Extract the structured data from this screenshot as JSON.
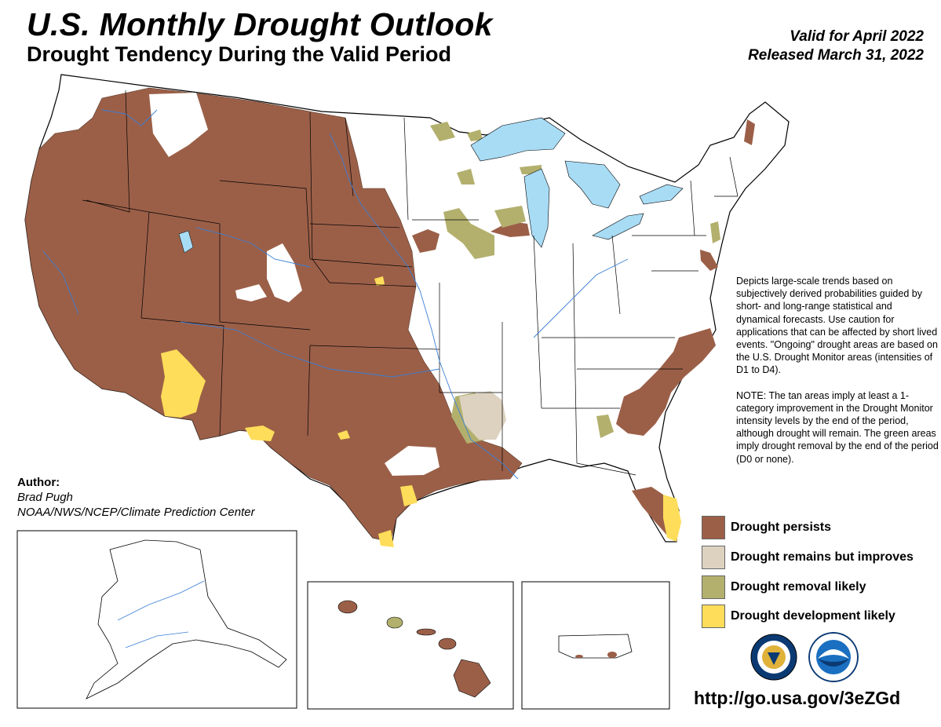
{
  "header": {
    "title": "U.S. Monthly Drought Outlook",
    "subtitle": "Drought Tendency During the Valid Period",
    "valid": "Valid for April 2022",
    "released": "Released March 31, 2022"
  },
  "description": {
    "p1": "Depicts large-scale trends based on subjectively derived probabilities guided by short- and long-range statistical and dynamical forecasts. Use caution for applications that can be affected by short lived events. \"Ongoing\" drought areas are based on the U.S. Drought Monitor areas (intensities of D1 to D4).",
    "p2": "NOTE: The tan areas imply at least a 1-category improvement in the Drought Monitor intensity levels by the end of the period, although drought will remain. The green areas imply drought removal by the end of the period (D0 or none)."
  },
  "author": {
    "label": "Author:",
    "name": "Brad Pugh",
    "org": "NOAA/NWS/NCEP/Climate Prediction Center"
  },
  "legend": [
    {
      "label": "Drought persists",
      "color": "#9b5f48"
    },
    {
      "label": "Drought remains but improves",
      "color": "#ddd2c0"
    },
    {
      "label": "Drought removal likely",
      "color": "#b3b06e"
    },
    {
      "label": "Drought development likely",
      "color": "#fedd5a"
    }
  ],
  "colors": {
    "persists": "#9b5f48",
    "improves": "#ddd2c0",
    "removal": "#b3b06e",
    "development": "#fedd5a",
    "water": "#a8dcf5",
    "rivers": "#3b7fd6"
  },
  "url": "http://go.usa.gov/3eZGd",
  "logos": [
    "nws-logo",
    "noaa-logo"
  ]
}
